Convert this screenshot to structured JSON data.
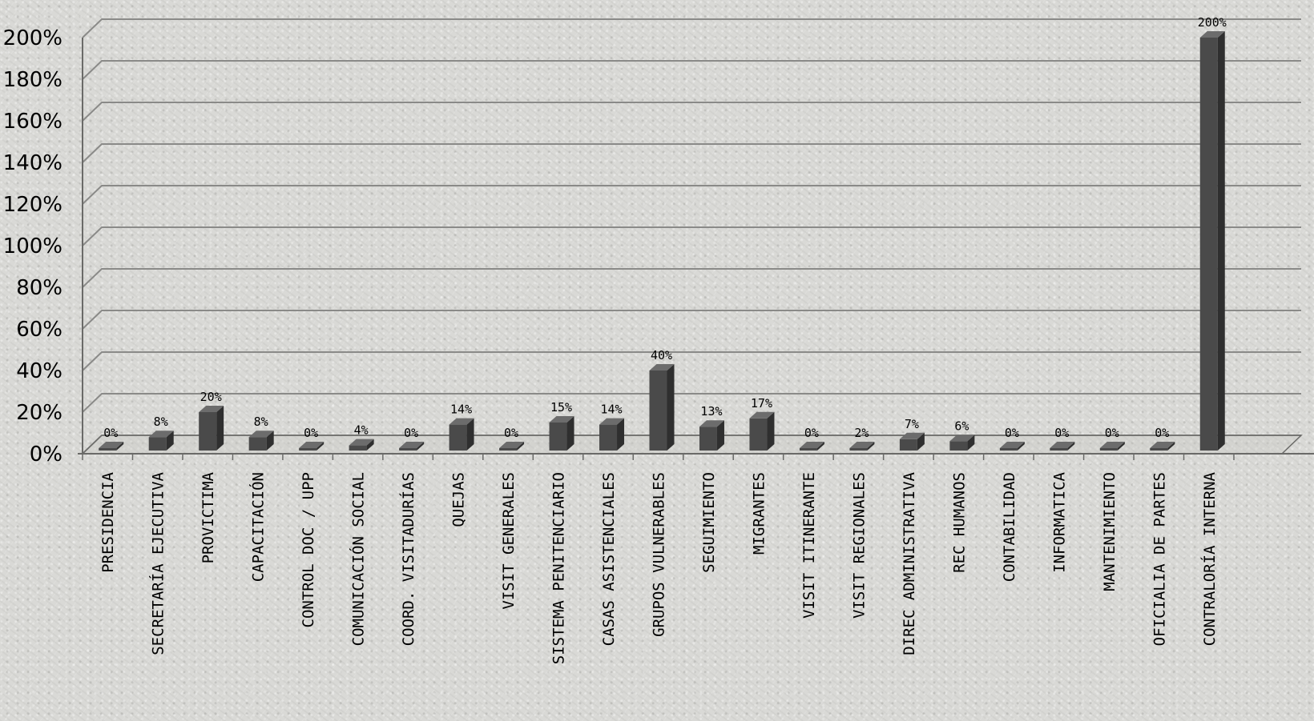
{
  "chart_data": {
    "type": "bar",
    "style": "3d-column",
    "categories": [
      "PRESIDENCIA",
      "SECRETARÍA EJECUTIVA",
      "PROVICTIMA",
      "CAPACITACIÓN",
      "CONTROL DOC / UPP",
      "COMUNICACIÓN SOCIAL",
      "COORD. VISITADURÍAS",
      "QUEJAS",
      "VISIT GENERALES",
      "SISTEMA PENITENCIARIO",
      "CASAS ASISTENCIALES",
      "GRUPOS VULNERABLES",
      "SEGUIMIENTO",
      "MIGRANTES",
      "VISIT ITINERANTE",
      "VISIT REGIONALES",
      "DIREC ADMINISTRATIVA",
      "REC HUMANOS",
      "CONTABILIDAD",
      "INFORMATICA",
      "MANTENIMIENTO",
      "OFICIALIA DE PARTES",
      "CONTRALORÍA INTERNA"
    ],
    "values": [
      0,
      8,
      20,
      8,
      0,
      4,
      0,
      14,
      0,
      15,
      14,
      40,
      13,
      17,
      0,
      2,
      7,
      6,
      0,
      0,
      0,
      0,
      200
    ],
    "data_labels": [
      "0%",
      "8%",
      "20%",
      "8%",
      "0%",
      "4%",
      "0%",
      "14%",
      "0%",
      "15%",
      "14%",
      "40%",
      "13%",
      "17%",
      "0%",
      "2%",
      "7%",
      "6%",
      "0%",
      "0%",
      "0%",
      "0%",
      "200%"
    ],
    "yticks": [
      0,
      20,
      40,
      60,
      80,
      100,
      120,
      140,
      160,
      180,
      200
    ],
    "ytick_labels": [
      "0%",
      "20%",
      "40%",
      "60%",
      "80%",
      "100%",
      "120%",
      "140%",
      "160%",
      "180%",
      "200%"
    ],
    "ylim": [
      0,
      200
    ],
    "grid": true,
    "legend": false,
    "title": "",
    "xlabel": "",
    "ylabel": "",
    "colors": {
      "bar_front": "#4a4a4a",
      "bar_side": "#2f2f2f",
      "bar_top": "#6c6c6c",
      "gridline": "#8a8a88",
      "axis": "#6a6a68"
    }
  }
}
